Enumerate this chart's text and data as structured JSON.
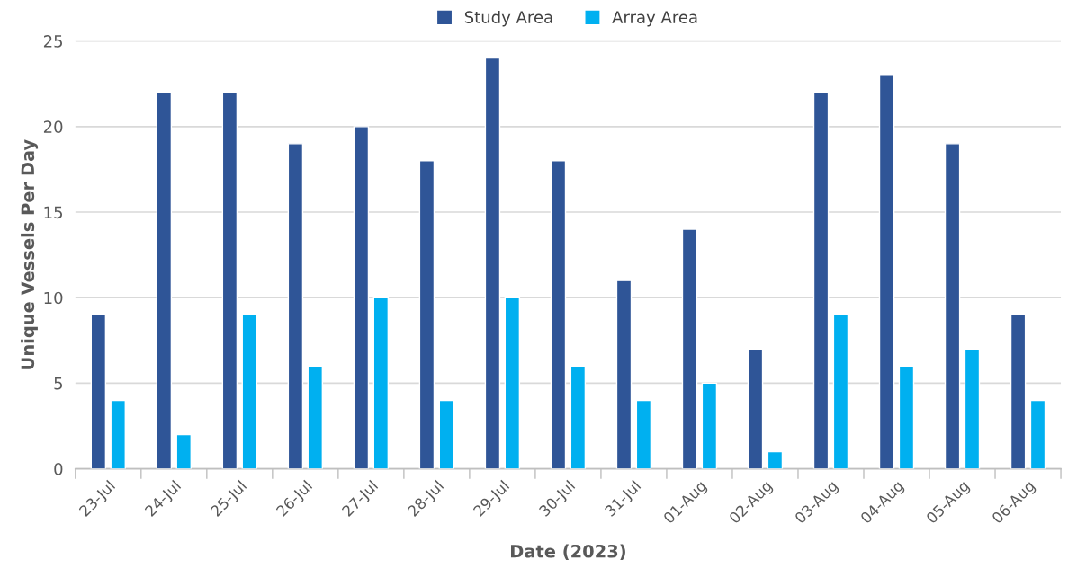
{
  "chart_data": {
    "type": "bar",
    "xlabel": "Date (2023)",
    "ylabel": "Unique Vessels Per Day",
    "categories": [
      "23-Jul",
      "24-Jul",
      "25-Jul",
      "26-Jul",
      "27-Jul",
      "28-Jul",
      "29-Jul",
      "30-Jul",
      "31-Jul",
      "01-Aug",
      "02-Aug",
      "03-Aug",
      "04-Aug",
      "05-Aug",
      "06-Aug"
    ],
    "series": [
      {
        "name": "Study Area",
        "color": "#2f5597",
        "values": [
          9,
          22,
          22,
          19,
          20,
          18,
          24,
          18,
          11,
          14,
          7,
          22,
          23,
          19,
          9
        ]
      },
      {
        "name": "Array Area",
        "color": "#00b0f0",
        "values": [
          4,
          2,
          9,
          6,
          10,
          4,
          10,
          6,
          4,
          5,
          1,
          9,
          6,
          7,
          4
        ]
      }
    ],
    "ylim": [
      0,
      25
    ],
    "yticks": [
      0,
      5,
      10,
      15,
      20,
      25
    ],
    "grid": "y",
    "legend": "top"
  }
}
